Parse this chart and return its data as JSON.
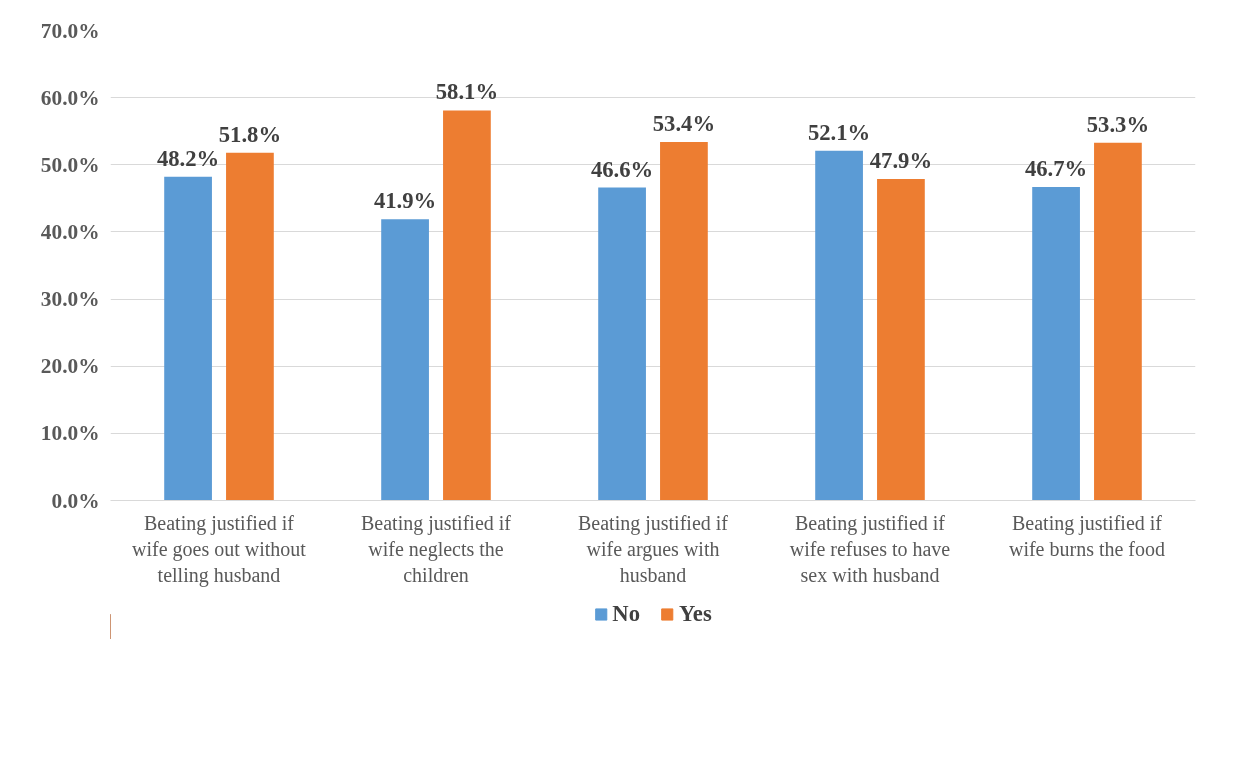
{
  "chart_data": {
    "type": "bar",
    "categories": [
      "Beating justified if wife goes out without telling husband",
      "Beating justified if wife neglects the children",
      "Beating justified if wife argues with husband",
      "Beating justified if wife refuses to have sex with husband",
      "Beating justified if wife burns the food"
    ],
    "series": [
      {
        "name": "No",
        "color": "#5b9bd5",
        "values": [
          48.2,
          41.9,
          46.6,
          52.1,
          46.7
        ],
        "value_labels": [
          "48.2%",
          "41.9%",
          "46.6%",
          "52.1%",
          "46.7%"
        ]
      },
      {
        "name": "Yes",
        "color": "#ed7d31",
        "values": [
          51.8,
          58.1,
          53.4,
          47.9,
          53.3
        ],
        "value_labels": [
          "51.8%",
          "58.1%",
          "53.4%",
          "47.9%",
          "53.3%"
        ]
      }
    ],
    "ylim": [
      0,
      70
    ],
    "yticks": [
      {
        "value": 0,
        "label": "0.0%"
      },
      {
        "value": 10,
        "label": "10.0%"
      },
      {
        "value": 20,
        "label": "20.0%"
      },
      {
        "value": 30,
        "label": "30.0%"
      },
      {
        "value": 40,
        "label": "40.0%"
      },
      {
        "value": 50,
        "label": "50.0%"
      },
      {
        "value": 60,
        "label": "60.0%"
      },
      {
        "value": 70,
        "label": "70.0%"
      }
    ],
    "grid": "y",
    "legend": "bottom"
  }
}
